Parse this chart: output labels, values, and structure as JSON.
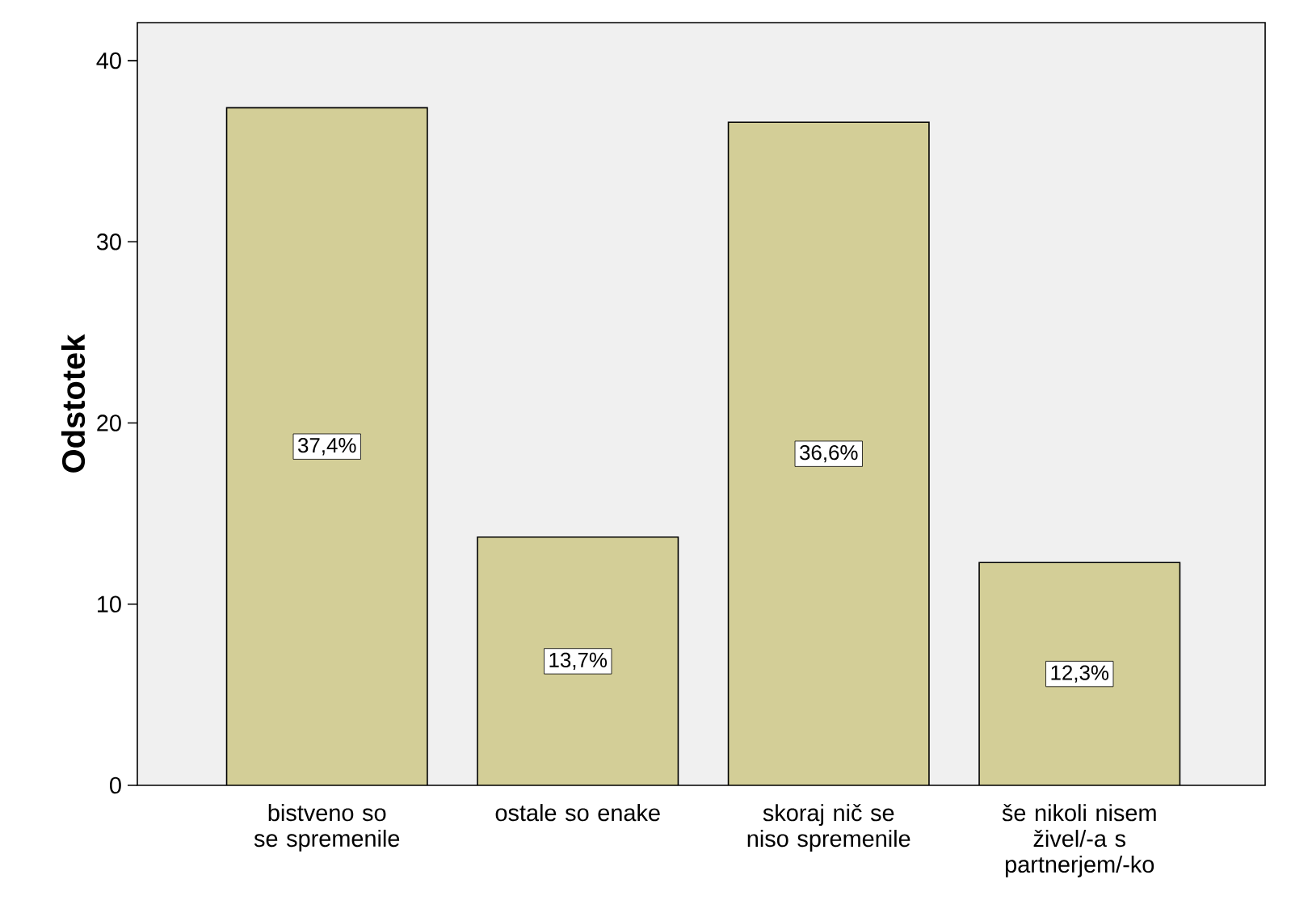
{
  "chart_data": {
    "type": "bar",
    "ylabel": "Odstotek",
    "categories": [
      "bistveno so se spremenile",
      "ostale so enake",
      "skoraj nič se niso spremenile",
      "še nikoli nisem živel/-a s partnerjem/-ko"
    ],
    "values": [
      37.4,
      13.7,
      36.6,
      12.3
    ],
    "value_labels": [
      "37,4%",
      "13,7%",
      "36,6%",
      "12,3%"
    ],
    "color": "#d3ce97",
    "ylim": [
      0,
      42.1
    ],
    "yticks": [
      0,
      10,
      20,
      30,
      40
    ],
    "grid": false
  }
}
